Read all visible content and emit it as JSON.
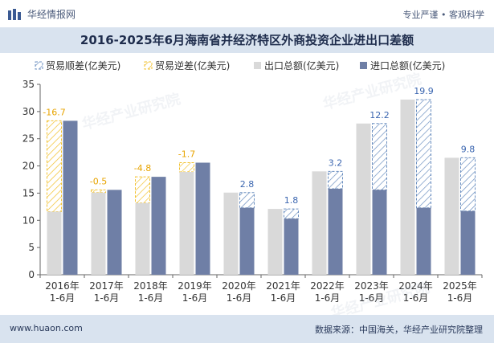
{
  "header": {
    "brand": "华经情报网",
    "slogan": "专业严谨 • 客观科学"
  },
  "title": "2016-2025年6月海南省并经济特区外商投资企业进出口差额",
  "footer": {
    "site": "www.huaon.com",
    "source": "数据来源：中国海关，华经产业研究院整理"
  },
  "watermark": "华经产业研究院",
  "colors": {
    "surplus_stroke": "#6b8fc0",
    "deficit_stroke": "#f2c12e",
    "export_fill": "#d9d9d9",
    "import_fill": "#6f7fa6",
    "label_surplus": "#3b66b0",
    "label_deficit": "#e8a400",
    "header_band": "#d9e3ef"
  },
  "chart_data": {
    "type": "bar",
    "categories": [
      "2016年\n1-6月",
      "2017年\n1-6月",
      "2018年\n1-6月",
      "2019年\n1-6月",
      "2020年\n1-6月",
      "2021年\n1-6月",
      "2022年\n1-6月",
      "2023年\n1-6月",
      "2024年\n1-6月",
      "2025年\n1-6月"
    ],
    "series": [
      {
        "name": "出口总额(亿美元)",
        "values": [
          11.6,
          15.1,
          13.2,
          18.9,
          15.1,
          12.1,
          19.0,
          27.8,
          32.2,
          21.5
        ]
      },
      {
        "name": "进口总额(亿美元)",
        "values": [
          28.3,
          15.6,
          18.0,
          20.6,
          12.3,
          10.3,
          15.8,
          15.6,
          12.3,
          11.7
        ]
      }
    ],
    "balance": [
      -16.7,
      -0.5,
      -4.8,
      -1.7,
      2.8,
      1.8,
      3.2,
      12.2,
      19.9,
      9.8
    ],
    "balance_labels": [
      "-16.7",
      "-0.5",
      "-4.8",
      "-1.7",
      "2.8",
      "1.8",
      "3.2",
      "12.2",
      "19.9",
      "9.8"
    ],
    "legend": [
      "贸易顺差(亿美元)",
      "贸易逆差(亿美元)",
      "出口总额(亿美元)",
      "进口总额(亿美元)"
    ],
    "legend_position": "top",
    "ylim": [
      0,
      35
    ],
    "yticks": [
      0,
      5,
      10,
      15,
      20,
      25,
      30,
      35
    ],
    "grid": false
  }
}
